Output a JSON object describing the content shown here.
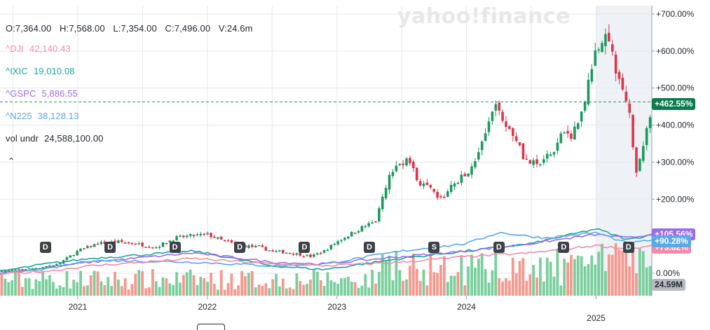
{
  "watermark": "yahoo!finance",
  "ohlc": {
    "open": "O:7,364.00",
    "high": "H:7,568.00",
    "low": "L:7,354.00",
    "close": "C:7,496.00",
    "volume": "V:24.6m"
  },
  "comparisons": [
    {
      "symbol": "^DJI",
      "value": "42,140.43",
      "color": "#f08cab"
    },
    {
      "symbol": "^IXIC",
      "value": "19,010.08",
      "color": "#16a6a1"
    },
    {
      "symbol": "^GSPC",
      "value": "5,886.55",
      "color": "#9a6bec"
    },
    {
      "symbol": "^N225",
      "value": "38,128.13",
      "color": "#5aa8e6"
    }
  ],
  "volume_row": {
    "label": "vol undr",
    "value": "24,588,100.00"
  },
  "collapse_icon": "chevron-up-icon",
  "badges": {
    "price": {
      "text": "+462.55%",
      "color": "#0c7a4d"
    },
    "n225": {
      "text": "+90.28%",
      "color": "#5aa8e6"
    },
    "gspc": {
      "text": "+105.56%",
      "color": "#9a6bec"
    },
    "dji": {
      "text": "+73.82%",
      "color": "#f08cab"
    },
    "volume": {
      "text": "24.59M",
      "color": "#b5bbc1"
    }
  },
  "markers": [
    {
      "label": "D",
      "date": 2020.75
    },
    {
      "label": "D",
      "date": 2021.25
    },
    {
      "label": "D",
      "date": 2021.75
    },
    {
      "label": "D",
      "date": 2022.25
    },
    {
      "label": "D",
      "date": 2022.75
    },
    {
      "label": "D",
      "date": 2023.25
    },
    {
      "label": "S",
      "date": 2023.75
    },
    {
      "label": "D",
      "date": 2024.25
    },
    {
      "label": "D",
      "date": 2024.75
    },
    {
      "label": "D",
      "date": 2025.25
    }
  ],
  "colors": {
    "up": "#1b9a5e",
    "down": "#e0334a",
    "vol_up": "#79cf9c",
    "vol_down": "#f5998e",
    "grid": "#e5e7ea",
    "highlight": "#eef2f7"
  },
  "chart_data": {
    "type": "candlestick",
    "y_unit": "% change",
    "ylim": [
      -50,
      730
    ],
    "y_ticks": [
      0,
      100,
      200,
      300,
      400,
      500,
      600,
      700
    ],
    "y_tick_labels": [
      "0.00%",
      "+100.00%",
      "+200.00%",
      "+300.00%",
      "+400.00%",
      "+500.00%",
      "+600.00%",
      "+700.00%"
    ],
    "x_range": [
      2020.4,
      2025.43
    ],
    "x_ticks": [
      2021,
      2022,
      2023,
      2024,
      2025
    ],
    "x_tick_labels": [
      "2021",
      "2022",
      "2023",
      "2024",
      "2025"
    ],
    "highlight_range": [
      2025.0,
      2025.43
    ],
    "last_value": 462.55,
    "price_path": [
      [
        2020.4,
        5
      ],
      [
        2020.55,
        10
      ],
      [
        2020.7,
        15
      ],
      [
        2020.85,
        25
      ],
      [
        2021.0,
        60
      ],
      [
        2021.15,
        80
      ],
      [
        2021.3,
        85
      ],
      [
        2021.45,
        80
      ],
      [
        2021.6,
        70
      ],
      [
        2021.75,
        95
      ],
      [
        2021.85,
        100
      ],
      [
        2022.0,
        105
      ],
      [
        2022.1,
        90
      ],
      [
        2022.25,
        75
      ],
      [
        2022.4,
        70
      ],
      [
        2022.5,
        60
      ],
      [
        2022.65,
        55
      ],
      [
        2022.8,
        45
      ],
      [
        2022.9,
        60
      ],
      [
        2023.0,
        85
      ],
      [
        2023.1,
        105
      ],
      [
        2023.2,
        125
      ],
      [
        2023.3,
        140
      ],
      [
        2023.4,
        260
      ],
      [
        2023.5,
        300
      ],
      [
        2023.55,
        310
      ],
      [
        2023.62,
        250
      ],
      [
        2023.7,
        230
      ],
      [
        2023.8,
        200
      ],
      [
        2023.9,
        240
      ],
      [
        2024.0,
        270
      ],
      [
        2024.1,
        330
      ],
      [
        2024.2,
        430
      ],
      [
        2024.25,
        455
      ],
      [
        2024.3,
        400
      ],
      [
        2024.4,
        360
      ],
      [
        2024.45,
        305
      ],
      [
        2024.55,
        290
      ],
      [
        2024.65,
        320
      ],
      [
        2024.75,
        380
      ],
      [
        2024.8,
        360
      ],
      [
        2024.88,
        430
      ],
      [
        2024.95,
        520
      ],
      [
        2025.0,
        600
      ],
      [
        2025.04,
        640
      ],
      [
        2025.08,
        630
      ],
      [
        2025.13,
        590
      ],
      [
        2025.18,
        510
      ],
      [
        2025.22,
        480
      ],
      [
        2025.25,
        450
      ],
      [
        2025.28,
        360
      ],
      [
        2025.31,
        280
      ],
      [
        2025.35,
        330
      ],
      [
        2025.4,
        400
      ],
      [
        2025.43,
        462.55
      ]
    ],
    "series": [
      {
        "name": "^IXIC",
        "color": "#16a6a1",
        "points": [
          [
            2020.4,
            5
          ],
          [
            2020.75,
            25
          ],
          [
            2021.1,
            40
          ],
          [
            2021.9,
            60
          ],
          [
            2022.5,
            20
          ],
          [
            2022.9,
            10
          ],
          [
            2023.5,
            40
          ],
          [
            2024.0,
            60
          ],
          [
            2024.5,
            80
          ],
          [
            2025.0,
            120
          ],
          [
            2025.25,
            90
          ],
          [
            2025.43,
            105
          ]
        ]
      },
      {
        "name": "^GSPC",
        "color": "#9a6bec",
        "points": [
          [
            2020.4,
            0
          ],
          [
            2020.75,
            15
          ],
          [
            2021.1,
            30
          ],
          [
            2021.9,
            55
          ],
          [
            2022.5,
            30
          ],
          [
            2022.9,
            25
          ],
          [
            2023.5,
            45
          ],
          [
            2024.0,
            60
          ],
          [
            2024.5,
            80
          ],
          [
            2025.0,
            105
          ],
          [
            2025.25,
            95
          ],
          [
            2025.43,
            105.56
          ]
        ]
      },
      {
        "name": "^N225",
        "color": "#5aa8e6",
        "points": [
          [
            2020.4,
            0
          ],
          [
            2020.75,
            10
          ],
          [
            2021.1,
            35
          ],
          [
            2021.9,
            30
          ],
          [
            2022.5,
            20
          ],
          [
            2022.9,
            25
          ],
          [
            2023.5,
            60
          ],
          [
            2024.0,
            80
          ],
          [
            2024.25,
            110
          ],
          [
            2024.6,
            95
          ],
          [
            2025.0,
            110
          ],
          [
            2025.25,
            80
          ],
          [
            2025.43,
            90.28
          ]
        ]
      },
      {
        "name": "^DJI",
        "color": "#f08cab",
        "points": [
          [
            2020.4,
            -2
          ],
          [
            2020.75,
            5
          ],
          [
            2021.1,
            20
          ],
          [
            2021.9,
            40
          ],
          [
            2022.5,
            25
          ],
          [
            2022.9,
            20
          ],
          [
            2023.5,
            30
          ],
          [
            2024.0,
            45
          ],
          [
            2024.5,
            55
          ],
          [
            2025.0,
            75
          ],
          [
            2025.25,
            65
          ],
          [
            2025.43,
            73.82
          ]
        ]
      }
    ]
  }
}
